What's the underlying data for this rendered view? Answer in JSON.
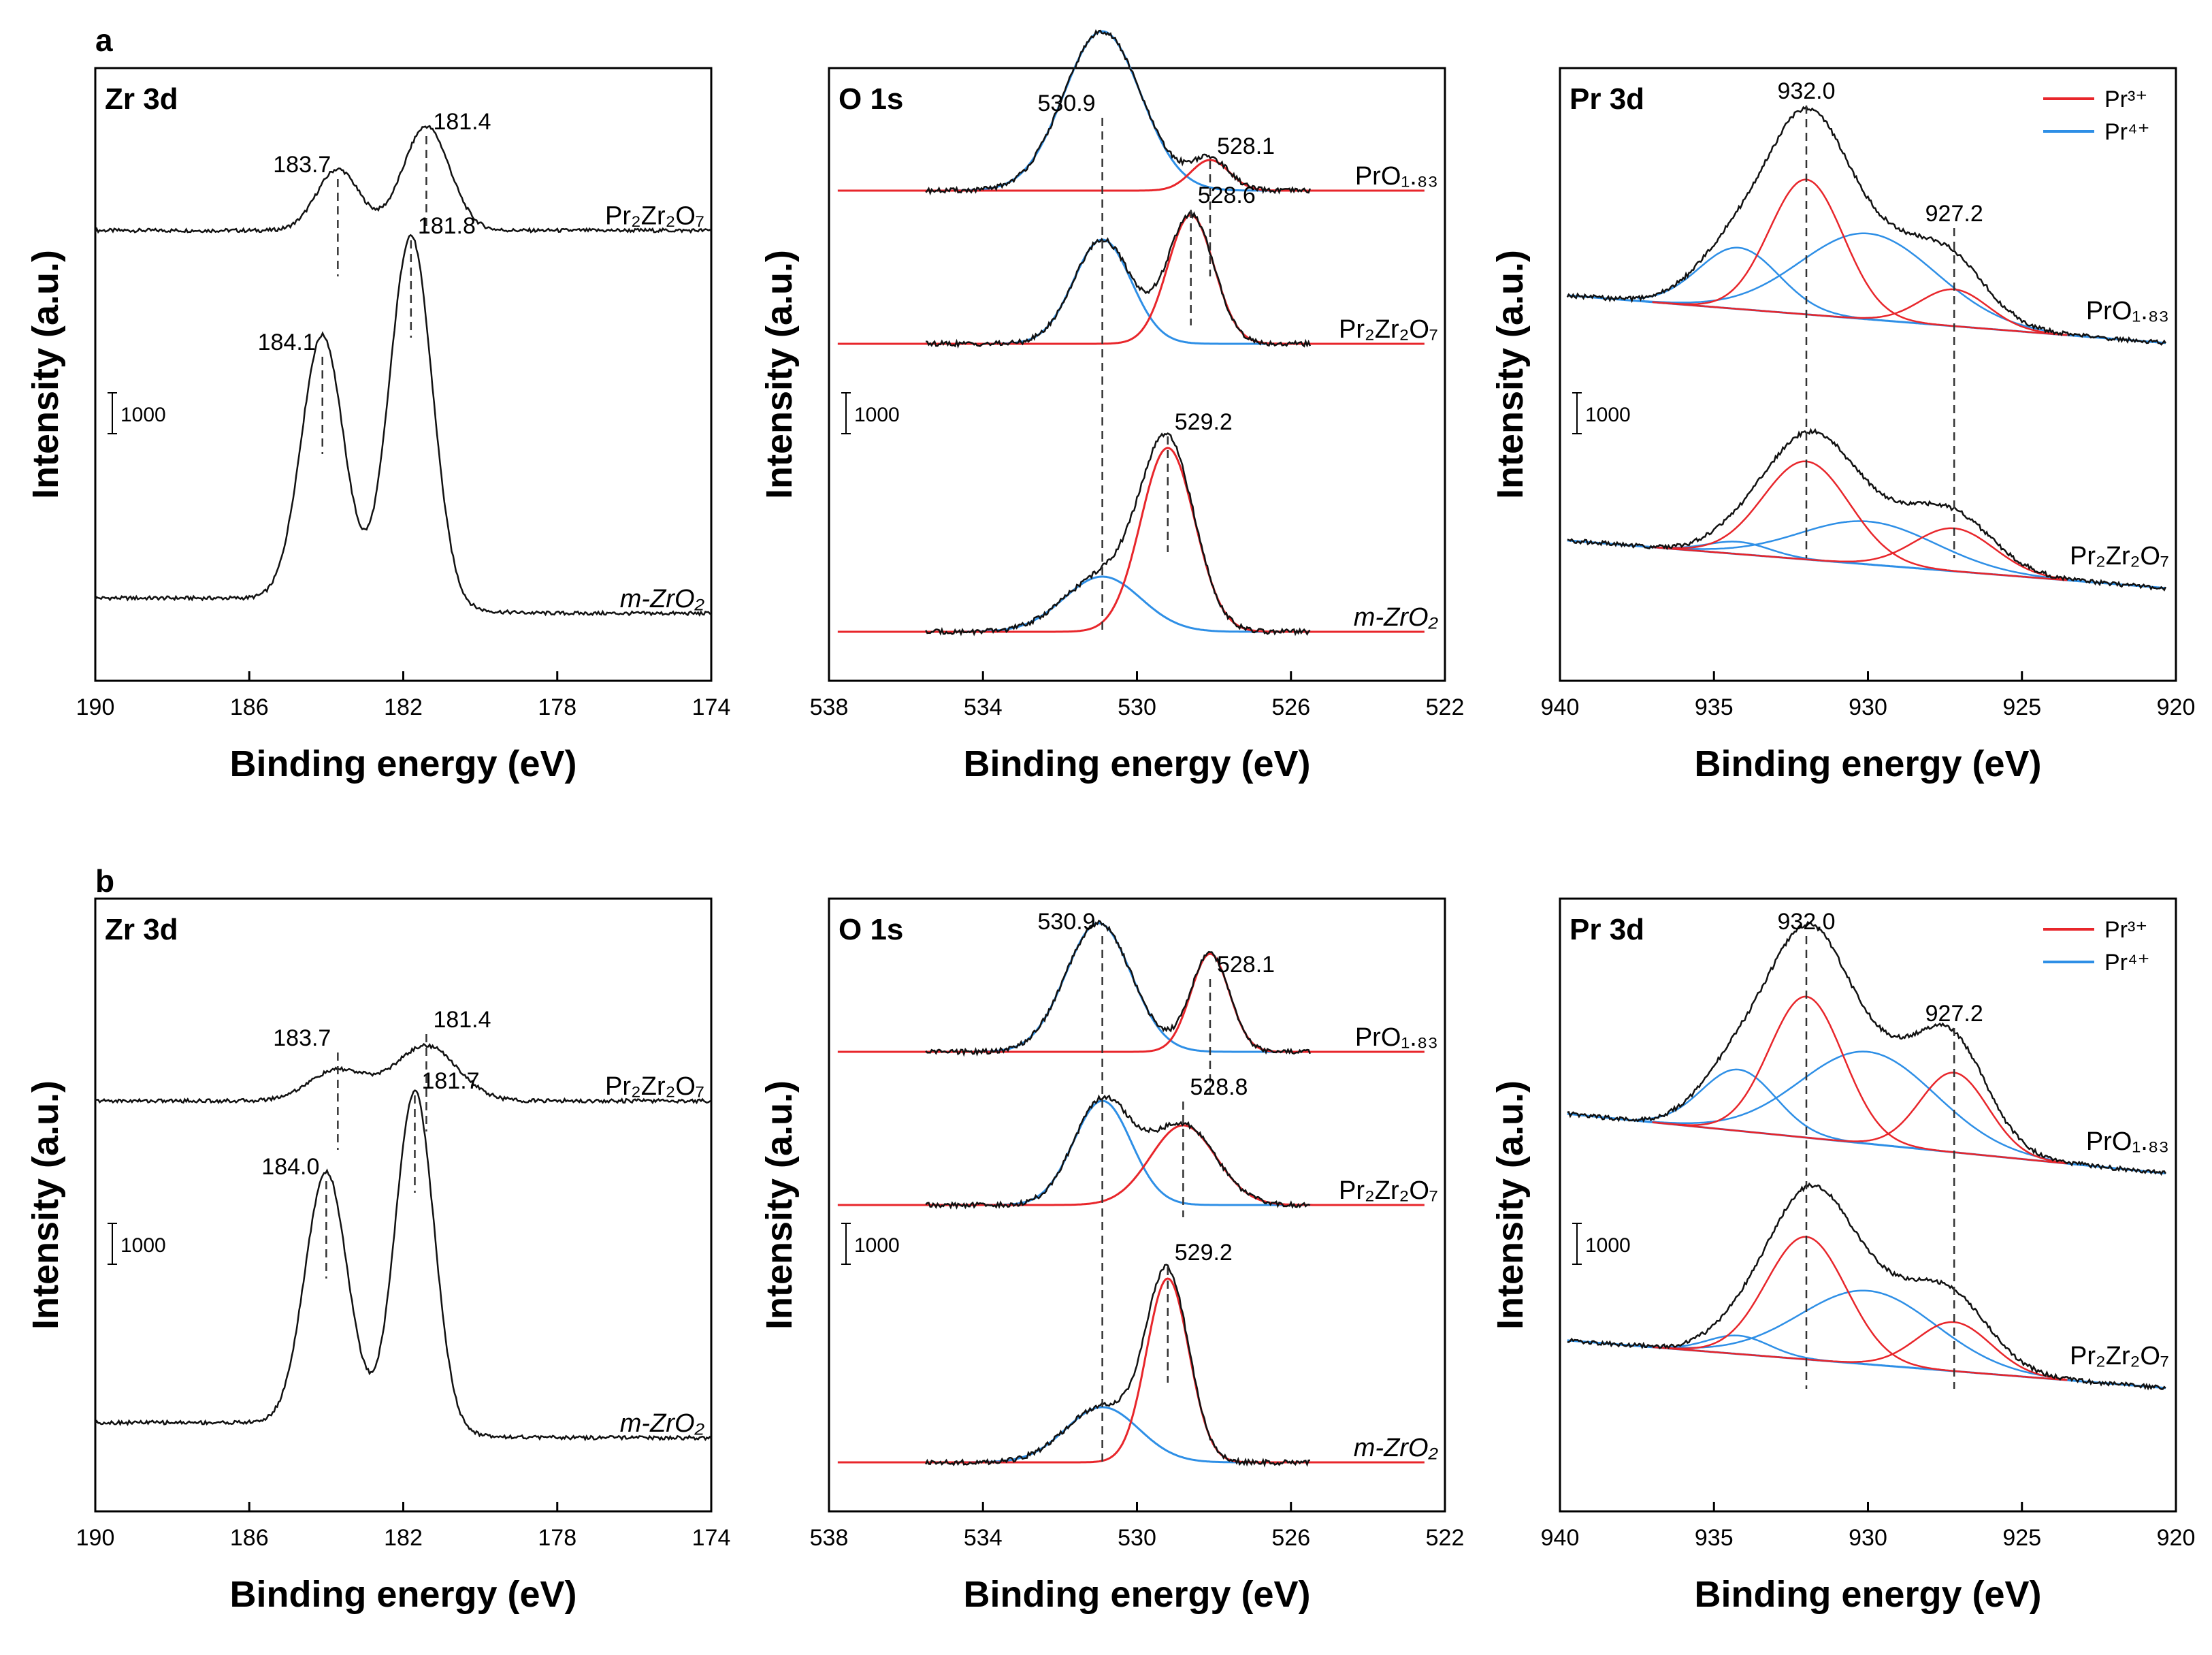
{
  "rows": [
    {
      "letter": "a"
    },
    {
      "letter": "b"
    }
  ],
  "colors": {
    "black": "#111111",
    "red": "#e8262b",
    "blue": "#2e8fe6"
  },
  "chart_data": [
    {
      "type": "line",
      "row": "a",
      "col": 0,
      "title": "Zr 3d",
      "xlabel": "Binding energy (eV)",
      "ylabel": "Intensity (a.u.)",
      "xlim": [
        190,
        174
      ],
      "xticks": [
        "190",
        "186",
        "182",
        "178",
        "174"
      ],
      "scale_bar": "1000",
      "series": [
        {
          "name": "Pr2Zr2O7",
          "label": "Pr₂Zr₂O₇",
          "baseline": 0.735,
          "peaks": [
            [
              183.7,
              0.1,
              0.55
            ],
            [
              181.4,
              0.17,
              0.6
            ]
          ]
        },
        {
          "name": "m-ZrO2",
          "label": "m-ZrO₂",
          "baseline": 0.11,
          "step": true,
          "peaks": [
            [
              184.1,
              0.43,
              0.55
            ],
            [
              181.8,
              0.6,
              0.55
            ]
          ]
        }
      ],
      "markers": [
        {
          "label": "183.7",
          "x": 183.7,
          "y": 0.83,
          "side": "left"
        },
        {
          "label": "181.4",
          "x": 181.4,
          "y": 0.9,
          "side": "right"
        },
        {
          "label": "184.1",
          "x": 184.1,
          "y": 0.54,
          "side": "left"
        },
        {
          "label": "181.8",
          "x": 181.8,
          "y": 0.73,
          "side": "right"
        }
      ]
    },
    {
      "type": "line",
      "row": "a",
      "col": 1,
      "title": "O 1s",
      "xlabel": "Binding energy (eV)",
      "ylabel": "Intensity (a.u.)",
      "xlim": [
        538,
        522
      ],
      "xticks": [
        "538",
        "534",
        "530",
        "526",
        "522"
      ],
      "scale_bar": "1000",
      "series": [
        {
          "name": "PrO1.83",
          "label": "PrO₁.₈₃",
          "baseline": 0.8,
          "peaks": [
            [
              530.9,
              0.26,
              1.0
            ],
            [
              528.1,
              0.05,
              0.5
            ]
          ]
        },
        {
          "name": "Pr2Zr2O7",
          "label": "Pr₂Zr₂O₇",
          "baseline": 0.55,
          "peaks": [
            [
              530.9,
              0.17,
              0.75
            ],
            [
              528.6,
              0.21,
              0.6
            ]
          ]
        },
        {
          "name": "m-ZrO2",
          "label": "m-ZrO₂",
          "baseline": 0.08,
          "peaks": [
            [
              530.9,
              0.09,
              1.0
            ],
            [
              529.2,
              0.3,
              0.7
            ]
          ]
        }
      ],
      "markers": [
        {
          "label": "530.9",
          "x": 530.9,
          "y": 0.93,
          "side": "left"
        },
        {
          "label": "528.1",
          "x": 528.1,
          "y": 0.86,
          "side": "right"
        },
        {
          "label": "528.6",
          "x": 528.6,
          "y": 0.78,
          "side": "right"
        },
        {
          "label": "529.2",
          "x": 529.2,
          "y": 0.41,
          "side": "right"
        }
      ]
    },
    {
      "type": "line",
      "row": "a",
      "col": 2,
      "title": "Pr 3d",
      "xlabel": "Binding energy (eV)",
      "ylabel": "Intensity (a.u.)",
      "xlim": [
        940,
        920
      ],
      "xticks": [
        "940",
        "935",
        "930",
        "925",
        "920"
      ],
      "scale_bar": "1000",
      "legend": [
        {
          "label": "Pr³⁺",
          "color": "red"
        },
        {
          "label": "Pr⁴⁺",
          "color": "blue"
        }
      ],
      "series": [
        {
          "name": "PrO1.83",
          "label": "PrO₁.₈₃",
          "baseline": [
            0.63,
            0.55
          ],
          "red": [
            [
              932,
              0.22,
              1.2
            ],
            [
              927.2,
              0.06,
              1.1
            ]
          ],
          "blue": [
            [
              934.2,
              0.1,
              1.3
            ],
            [
              930,
              0.14,
              2.2
            ]
          ]
        },
        {
          "name": "Pr2Zr2O7",
          "label": "Pr₂Zr₂O₇",
          "baseline": [
            0.23,
            0.15
          ],
          "red": [
            [
              932,
              0.16,
              1.4
            ],
            [
              927.2,
              0.07,
              1.3
            ]
          ],
          "blue": [
            [
              934.2,
              0.02,
              1.0
            ],
            [
              930,
              0.07,
              2.2
            ]
          ]
        }
      ],
      "markers": [
        {
          "label": "932.0",
          "x": 932.0,
          "y": 0.95,
          "side": "center"
        },
        {
          "label": "927.2",
          "x": 927.2,
          "y": 0.75,
          "side": "center"
        }
      ]
    },
    {
      "type": "line",
      "row": "b",
      "col": 0,
      "title": "Zr 3d",
      "xlabel": "Binding energy (eV)",
      "ylabel": "Intensity (a.u.)",
      "xlim": [
        190,
        174
      ],
      "xticks": [
        "190",
        "186",
        "182",
        "178",
        "174"
      ],
      "scale_bar": "1000",
      "series": [
        {
          "name": "Pr2Zr2O7",
          "label": "Pr₂Zr₂O₇",
          "baseline": 0.67,
          "peaks": [
            [
              183.7,
              0.05,
              0.75
            ],
            [
              181.4,
              0.09,
              0.8
            ]
          ]
        },
        {
          "name": "m-ZrO2",
          "label": "m-ZrO₂",
          "baseline": 0.12,
          "step": true,
          "peaks": [
            [
              184.0,
              0.41,
              0.55
            ],
            [
              181.7,
              0.55,
              0.5
            ]
          ]
        }
      ],
      "markers": [
        {
          "label": "183.7",
          "x": 183.7,
          "y": 0.76,
          "side": "left"
        },
        {
          "label": "181.4",
          "x": 181.4,
          "y": 0.79,
          "side": "right"
        },
        {
          "label": "184.0",
          "x": 184.0,
          "y": 0.55,
          "side": "left"
        },
        {
          "label": "181.7",
          "x": 181.7,
          "y": 0.69,
          "side": "right"
        }
      ]
    },
    {
      "type": "line",
      "row": "b",
      "col": 1,
      "title": "O 1s",
      "xlabel": "Binding energy (eV)",
      "ylabel": "Intensity (a.u.)",
      "xlim": [
        538,
        522
      ],
      "xticks": [
        "538",
        "534",
        "530",
        "526",
        "522"
      ],
      "scale_bar": "1000",
      "series": [
        {
          "name": "PrO1.83",
          "label": "PrO₁.₈₃",
          "baseline": 0.75,
          "peaks": [
            [
              531.0,
              0.21,
              0.85
            ],
            [
              528.1,
              0.16,
              0.5
            ]
          ]
        },
        {
          "name": "Pr2Zr2O7",
          "label": "Pr₂Zr₂O₇",
          "baseline": 0.5,
          "peaks": [
            [
              530.9,
              0.17,
              0.75
            ],
            [
              528.8,
              0.13,
              0.85
            ]
          ]
        },
        {
          "name": "m-ZrO2",
          "label": "m-ZrO₂",
          "baseline": 0.08,
          "peaks": [
            [
              530.9,
              0.09,
              0.95
            ],
            [
              529.2,
              0.3,
              0.55
            ]
          ]
        }
      ],
      "markers": [
        {
          "label": "530.9",
          "x": 530.9,
          "y": 0.95,
          "side": "left"
        },
        {
          "label": "528.1",
          "x": 528.1,
          "y": 0.88,
          "side": "right"
        },
        {
          "label": "528.8",
          "x": 528.8,
          "y": 0.68,
          "side": "right"
        },
        {
          "label": "529.2",
          "x": 529.2,
          "y": 0.41,
          "side": "right"
        }
      ]
    },
    {
      "type": "line",
      "row": "b",
      "col": 2,
      "title": "Pr 3d",
      "xlabel": "Binding energy (eV)",
      "ylabel": "Intensity (a.u.)",
      "xlim": [
        940,
        920
      ],
      "xticks": [
        "940",
        "935",
        "930",
        "925",
        "920"
      ],
      "scale_bar": "1000",
      "legend": [
        {
          "label": "Pr³⁺",
          "color": "red"
        },
        {
          "label": "Pr⁴⁺",
          "color": "blue"
        }
      ],
      "series": [
        {
          "name": "PrO1.83",
          "label": "PrO₁.₈₃",
          "baseline": [
            0.65,
            0.55
          ],
          "red": [
            [
              932,
              0.23,
              1.2
            ],
            [
              927.2,
              0.13,
              1.1
            ]
          ],
          "blue": [
            [
              934.2,
              0.1,
              1.2
            ],
            [
              930,
              0.15,
              2.2
            ]
          ]
        },
        {
          "name": "Pr2Zr2O7",
          "label": "Pr₂Zr₂O₇",
          "baseline": [
            0.28,
            0.2
          ],
          "red": [
            [
              932,
              0.2,
              1.3
            ],
            [
              927.2,
              0.08,
              1.2
            ]
          ],
          "blue": [
            [
              934.2,
              0.03,
              1.0
            ],
            [
              930,
              0.12,
              2.2
            ]
          ]
        }
      ],
      "markers": [
        {
          "label": "932.0",
          "x": 932.0,
          "y": 0.95,
          "side": "center"
        },
        {
          "label": "927.2",
          "x": 927.2,
          "y": 0.8,
          "side": "center"
        }
      ]
    }
  ]
}
